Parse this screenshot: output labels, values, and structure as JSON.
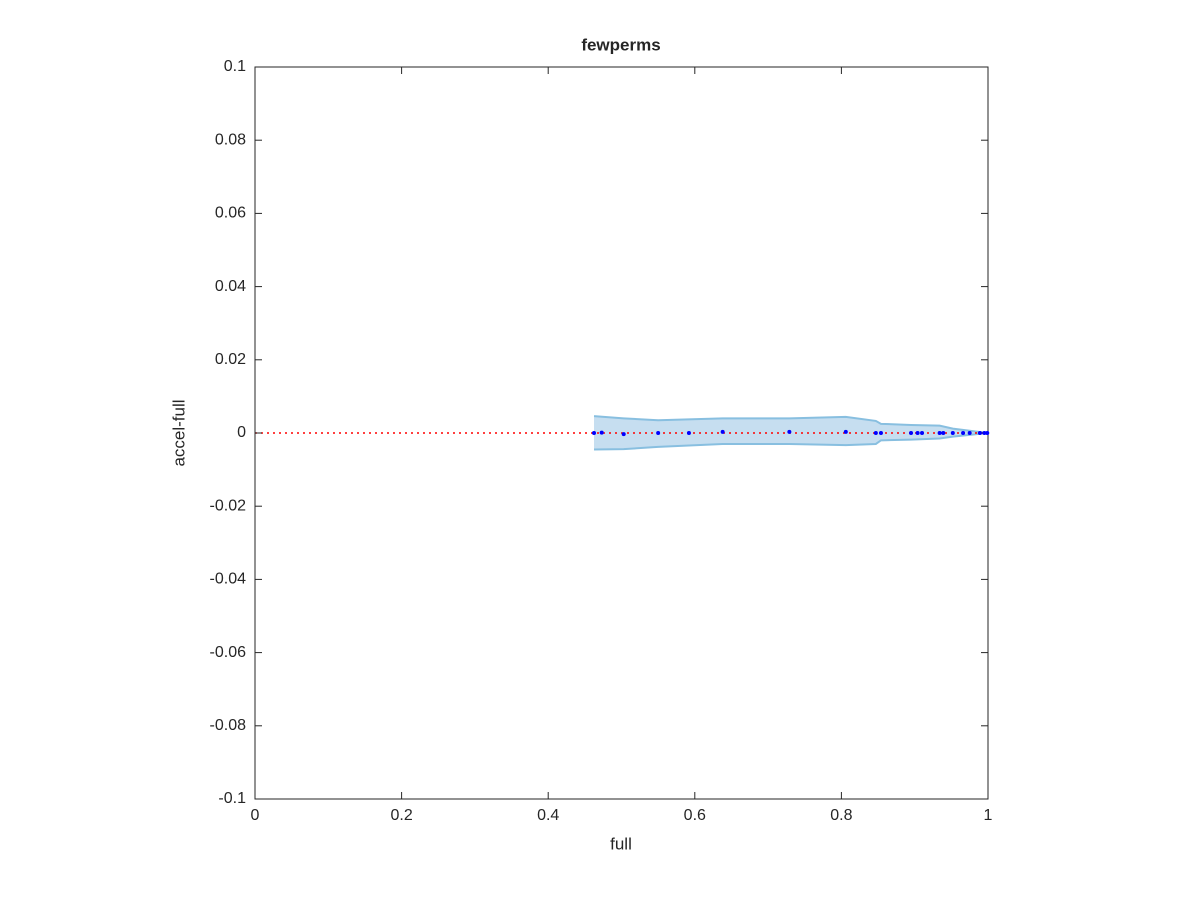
{
  "chart_data": {
    "type": "scatter",
    "title": "fewperms",
    "x_label": "full",
    "y_label": "accel-full",
    "xlim": [
      0,
      1
    ],
    "ylim": [
      -0.1,
      0.1
    ],
    "xticks": [
      0,
      0.2,
      0.4,
      0.6,
      0.8,
      1
    ],
    "yticks": [
      -0.1,
      -0.08,
      -0.06,
      -0.04,
      -0.02,
      0,
      0.02,
      0.04,
      0.06,
      0.08,
      0.1
    ],
    "grid": false,
    "series": [
      {
        "color": "#0000ff",
        "x": [
          0.4625,
          0.473,
          0.503,
          0.55,
          0.592,
          0.638,
          0.729,
          0.806,
          0.847,
          0.854,
          0.895,
          0.904,
          0.91,
          0.934,
          0.939,
          0.952,
          0.966,
          0.975,
          0.989,
          0.995,
          0.999
        ],
        "values": [
          0,
          0.0001,
          -0.0003,
          0,
          0,
          0.0003,
          0.0003,
          0.0003,
          0,
          0,
          0,
          0,
          0,
          0,
          0,
          0,
          0,
          0,
          0,
          0,
          0
        ]
      }
    ],
    "band": {
      "color": "#c6def0",
      "edge_color": "#88bfe0",
      "x": [
        0.4625,
        0.503,
        0.55,
        0.638,
        0.729,
        0.806,
        0.847,
        0.854,
        0.895,
        0.934,
        0.952,
        0.975,
        0.999
      ],
      "upper": [
        0.0046,
        0.004,
        0.0035,
        0.004,
        0.004,
        0.0044,
        0.0033,
        0.0025,
        0.0022,
        0.002,
        0.0012,
        0.0006,
        0
      ],
      "lower": [
        -0.0045,
        -0.0044,
        -0.0038,
        -0.003,
        -0.003,
        -0.0033,
        -0.003,
        -0.002,
        -0.0018,
        -0.0015,
        -0.001,
        -0.0005,
        0
      ]
    },
    "reference_line": {
      "y": 0,
      "color": "#ff0000"
    }
  }
}
